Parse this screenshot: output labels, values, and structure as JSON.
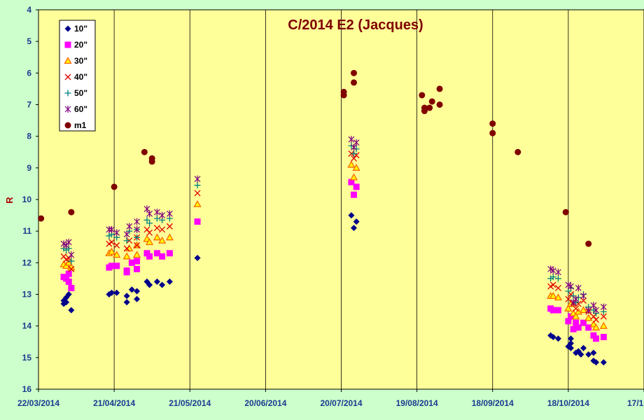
{
  "chart_data": {
    "type": "scatter",
    "title": "C/2014 E2 (Jacques)",
    "xlabel": "",
    "ylabel": "R",
    "ylim": [
      4,
      16
    ],
    "y_inverted": true,
    "yticks": [
      "4",
      "5",
      "6",
      "7",
      "8",
      "9",
      "10",
      "11",
      "12",
      "13",
      "14",
      "15",
      "16"
    ],
    "xlim": [
      "2014-03-22",
      "2014-11-17"
    ],
    "xticks": [
      "22/03/2014",
      "21/04/2014",
      "21/05/2014",
      "20/06/2014",
      "20/07/2014",
      "19/08/2014",
      "18/09/2014",
      "18/10/2014",
      "17/1"
    ],
    "legend_position": "top-left",
    "plot_background": "#ffff99",
    "series": [
      {
        "name": "10\"",
        "marker": "diamond",
        "color": "#00008b",
        "points": [
          [
            "2014-04-01",
            13.3
          ],
          [
            "2014-04-01",
            13.2
          ],
          [
            "2014-04-02",
            13.25
          ],
          [
            "2014-04-02",
            13.1
          ],
          [
            "2014-04-03",
            13.0
          ],
          [
            "2014-04-04",
            13.5
          ],
          [
            "2014-04-19",
            13.0
          ],
          [
            "2014-04-20",
            12.95
          ],
          [
            "2014-04-22",
            12.95
          ],
          [
            "2014-04-26",
            13.25
          ],
          [
            "2014-04-26",
            13.05
          ],
          [
            "2014-04-28",
            12.85
          ],
          [
            "2014-04-30",
            12.9
          ],
          [
            "2014-04-30",
            13.15
          ],
          [
            "2014-05-04",
            12.6
          ],
          [
            "2014-05-05",
            12.7
          ],
          [
            "2014-05-08",
            12.6
          ],
          [
            "2014-05-10",
            12.7
          ],
          [
            "2014-05-13",
            12.6
          ],
          [
            "2014-05-24",
            11.85
          ],
          [
            "2014-07-24",
            10.5
          ],
          [
            "2014-07-25",
            10.9
          ],
          [
            "2014-07-26",
            10.7
          ],
          [
            "2014-10-11",
            14.3
          ],
          [
            "2014-10-12",
            14.35
          ],
          [
            "2014-10-14",
            14.4
          ],
          [
            "2014-10-18",
            14.65
          ],
          [
            "2014-10-19",
            14.4
          ],
          [
            "2014-10-19",
            14.55
          ],
          [
            "2014-10-19",
            14.7
          ],
          [
            "2014-10-21",
            14.85
          ],
          [
            "2014-10-22",
            14.8
          ],
          [
            "2014-10-23",
            14.9
          ],
          [
            "2014-10-24",
            14.7
          ],
          [
            "2014-10-26",
            14.9
          ],
          [
            "2014-10-28",
            15.1
          ],
          [
            "2014-10-28",
            14.85
          ],
          [
            "2014-10-29",
            15.15
          ],
          [
            "2014-11-01",
            15.15
          ]
        ]
      },
      {
        "name": "20\"",
        "marker": "square",
        "color": "#ff00ff",
        "points": [
          [
            "2014-04-01",
            12.45
          ],
          [
            "2014-04-02",
            12.5
          ],
          [
            "2014-04-03",
            12.35
          ],
          [
            "2014-04-03",
            12.6
          ],
          [
            "2014-04-04",
            12.8
          ],
          [
            "2014-04-19",
            12.15
          ],
          [
            "2014-04-20",
            12.1
          ],
          [
            "2014-04-22",
            12.1
          ],
          [
            "2014-04-26",
            12.3
          ],
          [
            "2014-04-26",
            12.25
          ],
          [
            "2014-04-28",
            12.0
          ],
          [
            "2014-04-30",
            12.2
          ],
          [
            "2014-04-30",
            11.95
          ],
          [
            "2014-05-04",
            11.7
          ],
          [
            "2014-05-05",
            11.8
          ],
          [
            "2014-05-08",
            11.7
          ],
          [
            "2014-05-10",
            11.8
          ],
          [
            "2014-05-13",
            11.7
          ],
          [
            "2014-05-24",
            10.7
          ],
          [
            "2014-07-24",
            9.45
          ],
          [
            "2014-07-25",
            9.85
          ],
          [
            "2014-07-26",
            9.6
          ],
          [
            "2014-10-11",
            13.45
          ],
          [
            "2014-10-12",
            13.5
          ],
          [
            "2014-10-14",
            13.5
          ],
          [
            "2014-10-18",
            13.85
          ],
          [
            "2014-10-19",
            13.7
          ],
          [
            "2014-10-20",
            14.1
          ],
          [
            "2014-10-21",
            13.9
          ],
          [
            "2014-10-22",
            14.05
          ],
          [
            "2014-10-24",
            13.9
          ],
          [
            "2014-10-26",
            14.05
          ],
          [
            "2014-10-28",
            14.3
          ],
          [
            "2014-10-29",
            14.4
          ],
          [
            "2014-11-01",
            14.35
          ]
        ]
      },
      {
        "name": "30\"",
        "marker": "triangle",
        "color": "#ff6600",
        "points": [
          [
            "2014-04-01",
            12.05
          ],
          [
            "2014-04-02",
            12.1
          ],
          [
            "2014-04-03",
            12.0
          ],
          [
            "2014-04-04",
            12.15
          ],
          [
            "2014-04-19",
            11.7
          ],
          [
            "2014-04-20",
            11.65
          ],
          [
            "2014-04-22",
            11.75
          ],
          [
            "2014-04-26",
            11.8
          ],
          [
            "2014-04-27",
            11.55
          ],
          [
            "2014-04-30",
            11.45
          ],
          [
            "2014-04-30",
            11.75
          ],
          [
            "2014-05-04",
            11.25
          ],
          [
            "2014-05-05",
            11.35
          ],
          [
            "2014-05-08",
            11.2
          ],
          [
            "2014-05-10",
            11.3
          ],
          [
            "2014-05-13",
            11.2
          ],
          [
            "2014-05-24",
            10.15
          ],
          [
            "2014-07-24",
            8.9
          ],
          [
            "2014-07-25",
            9.3
          ],
          [
            "2014-07-26",
            9.0
          ],
          [
            "2014-10-11",
            13.05
          ],
          [
            "2014-10-12",
            13.05
          ],
          [
            "2014-10-14",
            13.1
          ],
          [
            "2014-10-18",
            13.45
          ],
          [
            "2014-10-19",
            13.3
          ],
          [
            "2014-10-20",
            13.6
          ],
          [
            "2014-10-21",
            13.7
          ],
          [
            "2014-10-22",
            13.55
          ],
          [
            "2014-10-24",
            13.5
          ],
          [
            "2014-10-26",
            13.75
          ],
          [
            "2014-10-28",
            13.95
          ],
          [
            "2014-10-29",
            14.05
          ],
          [
            "2014-11-01",
            14.0
          ]
        ]
      },
      {
        "name": "40\"",
        "marker": "x",
        "color": "#e00000",
        "points": [
          [
            "2014-04-01",
            11.8
          ],
          [
            "2014-04-02",
            11.9
          ],
          [
            "2014-04-03",
            11.85
          ],
          [
            "2014-04-04",
            12.2
          ],
          [
            "2014-04-19",
            11.4
          ],
          [
            "2014-04-20",
            11.35
          ],
          [
            "2014-04-22",
            11.45
          ],
          [
            "2014-04-26",
            11.55
          ],
          [
            "2014-04-27",
            11.3
          ],
          [
            "2014-04-30",
            11.2
          ],
          [
            "2014-04-30",
            11.45
          ],
          [
            "2014-05-04",
            10.95
          ],
          [
            "2014-05-05",
            11.05
          ],
          [
            "2014-05-08",
            10.9
          ],
          [
            "2014-05-10",
            10.95
          ],
          [
            "2014-05-13",
            10.85
          ],
          [
            "2014-05-24",
            9.8
          ],
          [
            "2014-07-24",
            8.55
          ],
          [
            "2014-07-25",
            8.7
          ],
          [
            "2014-07-26",
            8.6
          ],
          [
            "2014-10-11",
            12.75
          ],
          [
            "2014-10-12",
            12.7
          ],
          [
            "2014-10-14",
            12.8
          ],
          [
            "2014-10-18",
            13.15
          ],
          [
            "2014-10-19",
            13.0
          ],
          [
            "2014-10-20",
            13.3
          ],
          [
            "2014-10-21",
            13.45
          ],
          [
            "2014-10-22",
            13.3
          ],
          [
            "2014-10-24",
            13.2
          ],
          [
            "2014-10-26",
            13.55
          ],
          [
            "2014-10-28",
            13.7
          ],
          [
            "2014-10-29",
            13.8
          ],
          [
            "2014-11-01",
            13.7
          ]
        ]
      },
      {
        "name": "50\"",
        "marker": "plus",
        "color": "#008080",
        "points": [
          [
            "2014-04-01",
            11.55
          ],
          [
            "2014-04-02",
            11.6
          ],
          [
            "2014-04-03",
            11.55
          ],
          [
            "2014-04-04",
            11.95
          ],
          [
            "2014-04-19",
            11.15
          ],
          [
            "2014-04-20",
            11.1
          ],
          [
            "2014-04-22",
            11.2
          ],
          [
            "2014-04-26",
            11.3
          ],
          [
            "2014-04-27",
            11.0
          ],
          [
            "2014-04-30",
            10.95
          ],
          [
            "2014-04-30",
            11.2
          ],
          [
            "2014-05-04",
            10.65
          ],
          [
            "2014-05-05",
            10.75
          ],
          [
            "2014-05-08",
            10.6
          ],
          [
            "2014-05-10",
            10.65
          ],
          [
            "2014-05-13",
            10.6
          ],
          [
            "2014-05-24",
            9.55
          ],
          [
            "2014-07-24",
            8.3
          ],
          [
            "2014-07-25",
            8.55
          ],
          [
            "2014-07-26",
            8.4
          ],
          [
            "2014-10-11",
            12.5
          ],
          [
            "2014-10-12",
            12.45
          ],
          [
            "2014-10-14",
            12.5
          ],
          [
            "2014-10-18",
            12.9
          ],
          [
            "2014-10-19",
            12.8
          ],
          [
            "2014-10-20",
            13.05
          ],
          [
            "2014-10-21",
            13.25
          ],
          [
            "2014-10-22",
            13.1
          ],
          [
            "2014-10-24",
            13.0
          ],
          [
            "2014-10-26",
            13.4
          ],
          [
            "2014-10-28",
            13.5
          ],
          [
            "2014-10-29",
            13.6
          ],
          [
            "2014-11-01",
            13.55
          ]
        ]
      },
      {
        "name": "60\"",
        "marker": "star",
        "color": "#800080",
        "points": [
          [
            "2014-04-01",
            11.4
          ],
          [
            "2014-04-02",
            11.45
          ],
          [
            "2014-04-03",
            11.35
          ],
          [
            "2014-04-04",
            11.75
          ],
          [
            "2014-04-19",
            10.95
          ],
          [
            "2014-04-20",
            10.95
          ],
          [
            "2014-04-22",
            11.05
          ],
          [
            "2014-04-26",
            11.1
          ],
          [
            "2014-04-27",
            10.85
          ],
          [
            "2014-04-30",
            10.7
          ],
          [
            "2014-04-30",
            10.95
          ],
          [
            "2014-05-04",
            10.3
          ],
          [
            "2014-05-05",
            10.45
          ],
          [
            "2014-05-08",
            10.4
          ],
          [
            "2014-05-10",
            10.5
          ],
          [
            "2014-05-13",
            10.45
          ],
          [
            "2014-05-24",
            9.35
          ],
          [
            "2014-07-24",
            8.1
          ],
          [
            "2014-07-25",
            8.35
          ],
          [
            "2014-07-26",
            8.2
          ],
          [
            "2014-10-11",
            12.2
          ],
          [
            "2014-10-12",
            12.25
          ],
          [
            "2014-10-14",
            12.3
          ],
          [
            "2014-10-18",
            12.7
          ],
          [
            "2014-10-19",
            12.75
          ],
          [
            "2014-10-20",
            13.25
          ],
          [
            "2014-10-21",
            13.15
          ],
          [
            "2014-10-22",
            12.8
          ],
          [
            "2014-10-24",
            13.05
          ],
          [
            "2014-10-26",
            13.5
          ],
          [
            "2014-10-28",
            13.35
          ],
          [
            "2014-10-29",
            13.5
          ],
          [
            "2014-11-01",
            13.4
          ]
        ]
      },
      {
        "name": "m1",
        "marker": "circle",
        "color": "#800000",
        "points": [
          [
            "2014-03-23",
            10.6
          ],
          [
            "2014-04-04",
            10.4
          ],
          [
            "2014-04-21",
            9.6
          ],
          [
            "2014-05-03",
            8.5
          ],
          [
            "2014-05-06",
            8.7
          ],
          [
            "2014-05-06",
            8.8
          ],
          [
            "2014-07-21",
            6.6
          ],
          [
            "2014-07-21",
            6.7
          ],
          [
            "2014-07-25",
            6.0
          ],
          [
            "2014-07-25",
            6.3
          ],
          [
            "2014-08-21",
            6.7
          ],
          [
            "2014-08-22",
            7.1
          ],
          [
            "2014-08-22",
            7.2
          ],
          [
            "2014-08-24",
            7.1
          ],
          [
            "2014-08-25",
            6.9
          ],
          [
            "2014-08-28",
            7.0
          ],
          [
            "2014-08-28",
            6.5
          ],
          [
            "2014-09-18",
            7.6
          ],
          [
            "2014-09-18",
            7.9
          ],
          [
            "2014-09-28",
            8.5
          ],
          [
            "2014-10-17",
            10.4
          ],
          [
            "2014-10-26",
            11.4
          ]
        ]
      }
    ]
  }
}
